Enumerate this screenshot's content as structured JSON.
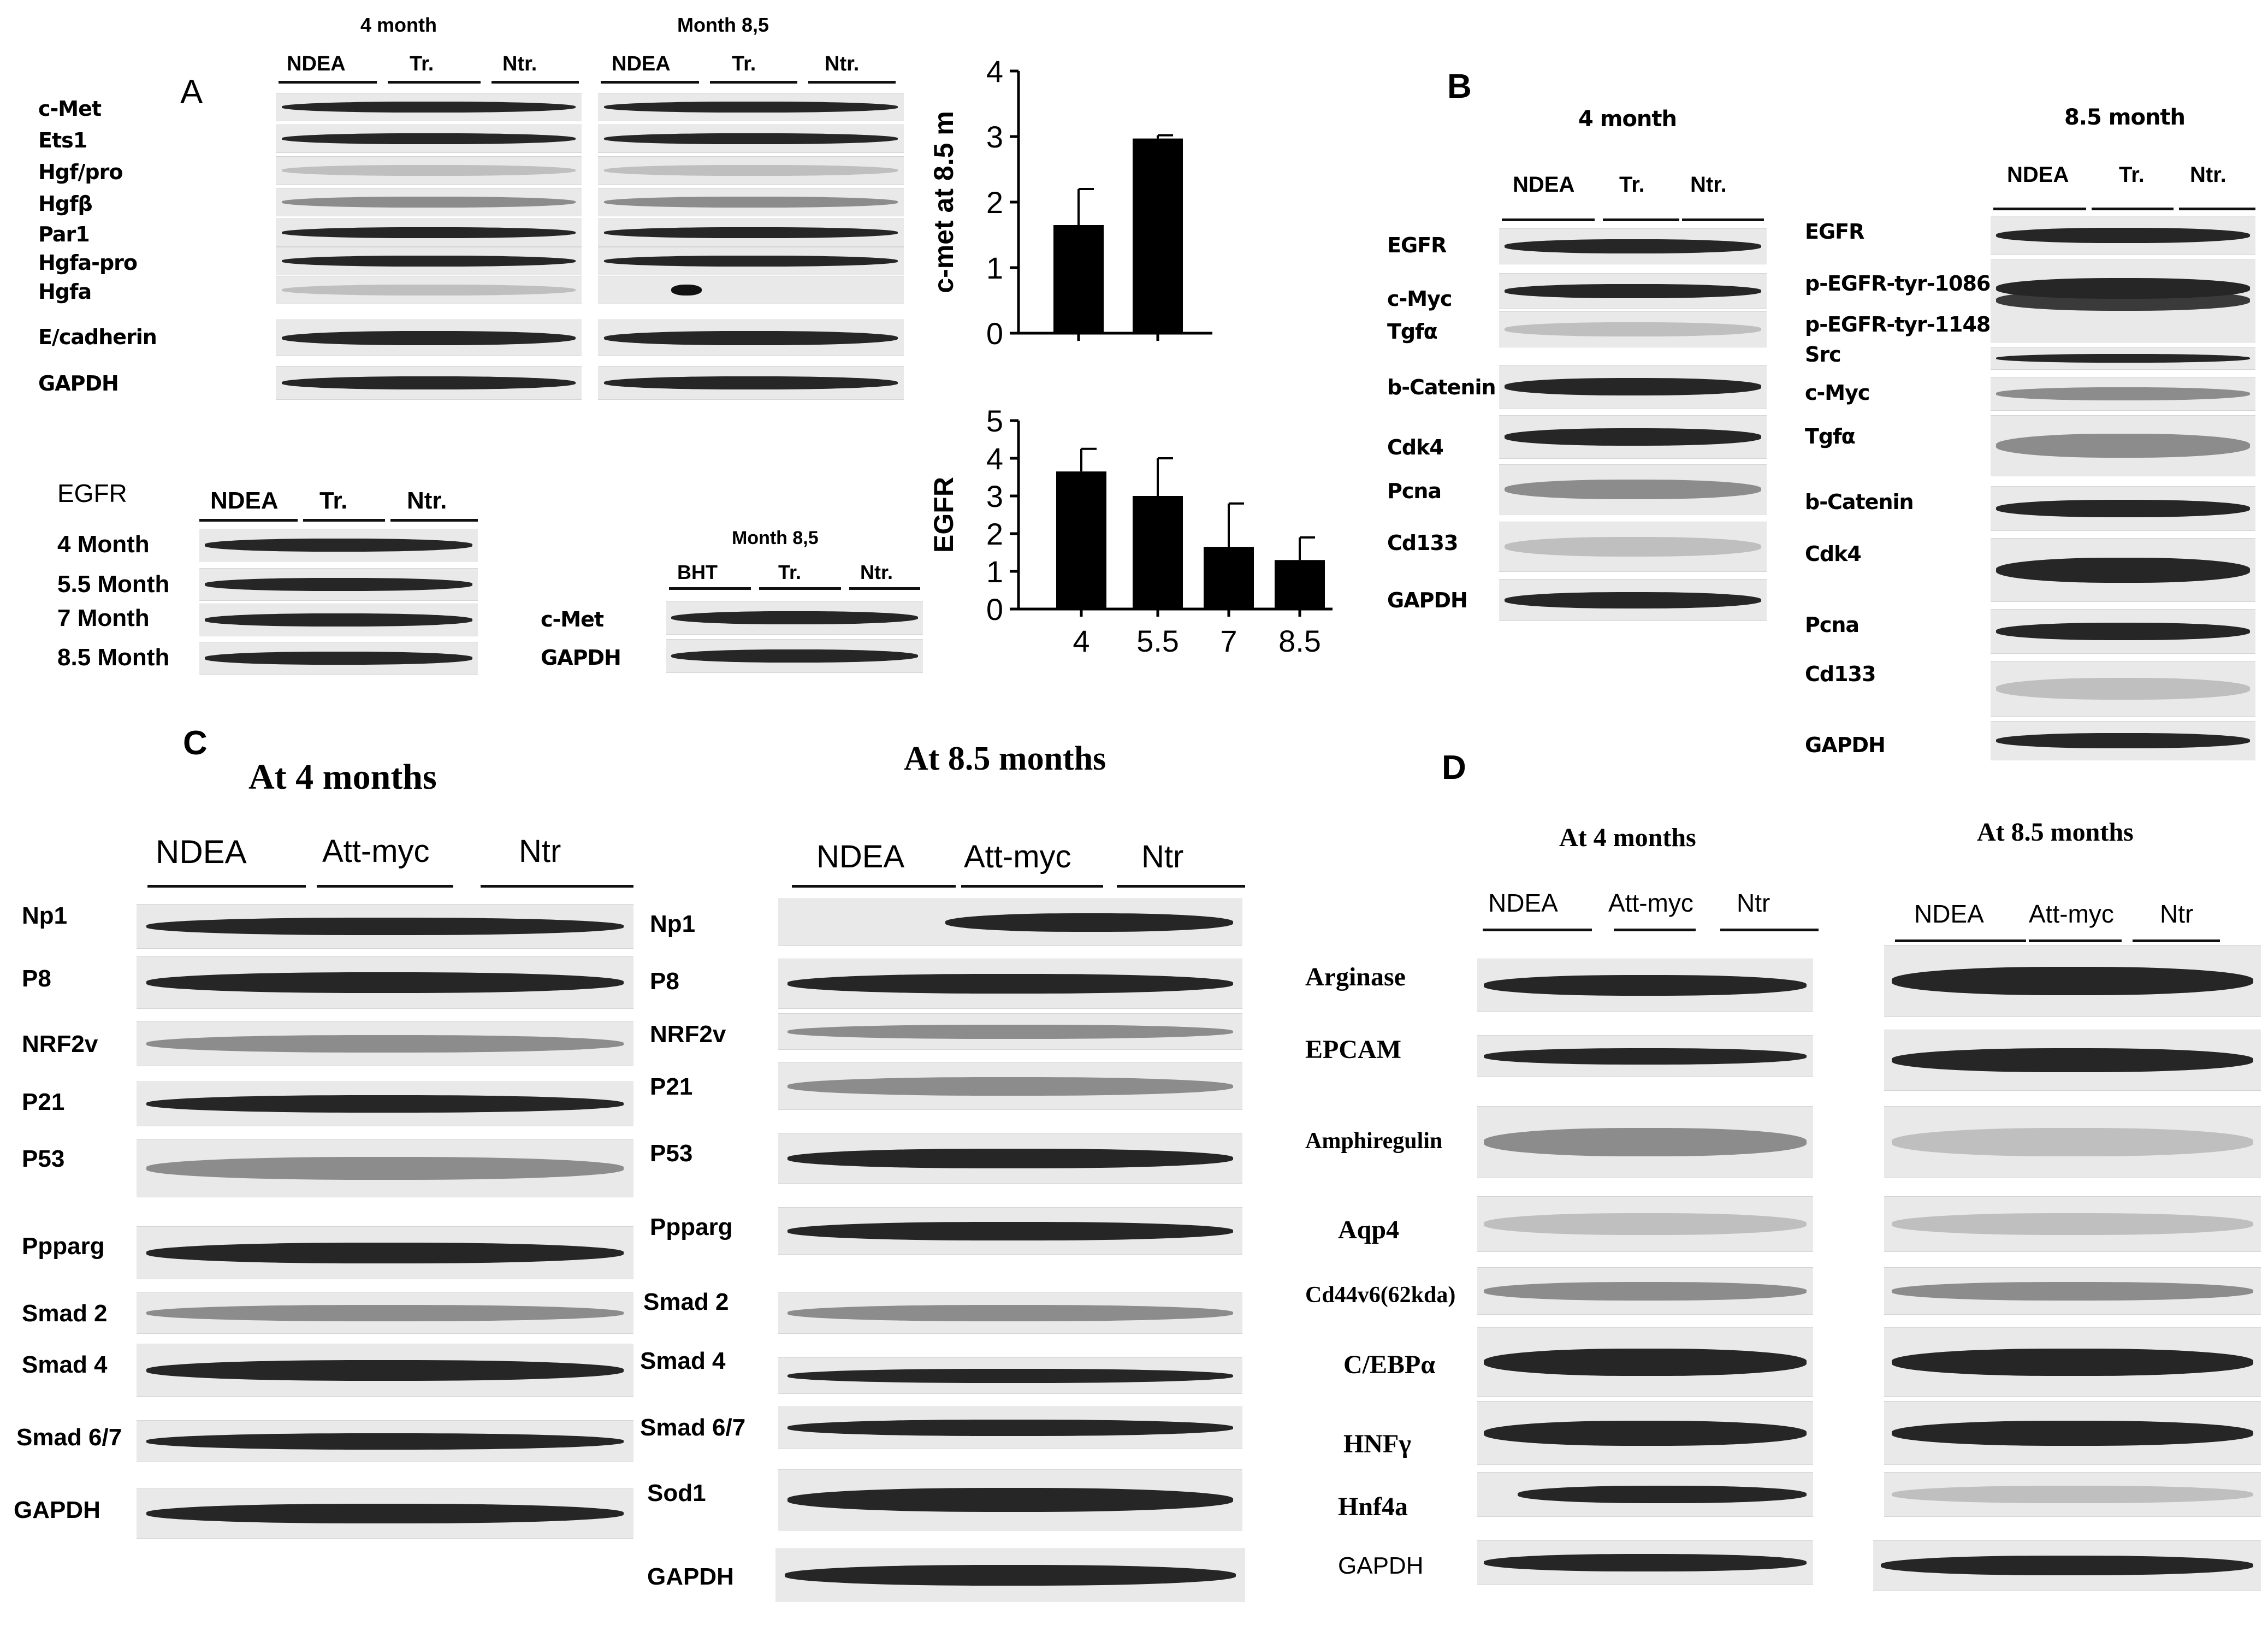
{
  "panelA": {
    "letter": "A",
    "blot1": {
      "groups_4m_title": "4 month",
      "groups_85m_title": "Month 8,5",
      "groups": [
        "NDEA",
        "Tr.",
        "Ntr."
      ],
      "rows": [
        "c-Met",
        "Ets1",
        "Hgf/pro",
        "Hgfβ",
        "Par1",
        "Hgfa-pro",
        "Hgfa",
        "E/cadherin",
        "GAPDH"
      ]
    },
    "blot2": {
      "title": "EGFR",
      "groups": [
        "NDEA",
        "Tr.",
        "Ntr."
      ],
      "rows": [
        "4 Month",
        "5.5 Month",
        "7 Month",
        "8.5 Month"
      ]
    },
    "blot3": {
      "title": "Month 8,5",
      "groups": [
        "BHT",
        "Tr.",
        "Ntr."
      ],
      "rows": [
        "c-Met",
        "GAPDH"
      ]
    }
  },
  "chart_data": [
    {
      "type": "bar",
      "categories": [
        "",
        ""
      ],
      "values": [
        1.65,
        2.97
      ],
      "errors": [
        0.55,
        0.05
      ],
      "ylabel": "c-met at 8.5 m",
      "ylim": [
        0,
        4
      ],
      "yticks": [
        "0",
        "1",
        "2",
        "3",
        "4"
      ]
    },
    {
      "type": "bar",
      "categories": [
        "4",
        "5.5",
        "7",
        "8.5"
      ],
      "values": [
        3.65,
        3.0,
        1.65,
        1.3
      ],
      "errors": [
        0.6,
        1.0,
        1.15,
        0.6
      ],
      "ylabel": "EGFR",
      "ylim": [
        0,
        5
      ],
      "yticks": [
        "0",
        "1",
        "2",
        "3",
        "4",
        "5"
      ]
    }
  ],
  "panelB": {
    "letter": "B",
    "left": {
      "title": "4 month",
      "groups": [
        "NDEA",
        "Tr.",
        "Ntr."
      ],
      "rows": [
        "EGFR",
        "c-Myc",
        "Tgfα",
        "b-Catenin",
        "Cdk4",
        "Pcna",
        "Cd133",
        "GAPDH"
      ]
    },
    "right": {
      "title": "8.5 month",
      "groups": [
        "NDEA",
        "Tr.",
        "Ntr."
      ],
      "rows": [
        "EGFR",
        "p-EGFR-tyr-1086",
        "p-EGFR-tyr-1148",
        "Src",
        "c-Myc",
        "Tgfα",
        "b-Catenin",
        "Cdk4",
        "Pcna",
        "Cd133",
        "GAPDH"
      ]
    }
  },
  "panelC": {
    "letter": "C",
    "left": {
      "title": "At 4 months",
      "groups": [
        "NDEA",
        "Att-myc",
        "Ntr"
      ],
      "rows": [
        "Np1",
        "P8",
        "NRF2v",
        "P21",
        "P53",
        "Ppparg",
        "Smad 2",
        "Smad 4",
        "Smad 6/7",
        "GAPDH"
      ]
    },
    "right": {
      "title": "At 8.5 months",
      "groups": [
        "NDEA",
        "Att-myc",
        "Ntr"
      ],
      "rows": [
        "Np1",
        "P8",
        "NRF2v",
        "P21",
        "P53",
        "Ppparg",
        "Smad 2",
        "Smad 4",
        "Smad 6/7",
        "Sod1",
        "GAPDH"
      ]
    }
  },
  "panelD": {
    "letter": "D",
    "left": {
      "title": "At 4 months",
      "groups": [
        "NDEA",
        "Att-myc",
        "Ntr"
      ]
    },
    "right": {
      "title": "At 8.5 months",
      "groups": [
        "NDEA",
        "Att-myc",
        "Ntr"
      ]
    },
    "rows": [
      "Arginase",
      "EPCAM",
      "Amphiregulin",
      "Aqp4",
      "Cd44v6(62kda)",
      "C/EBPα",
      "HNFγ",
      "Hnf4a",
      "GAPDH"
    ]
  }
}
